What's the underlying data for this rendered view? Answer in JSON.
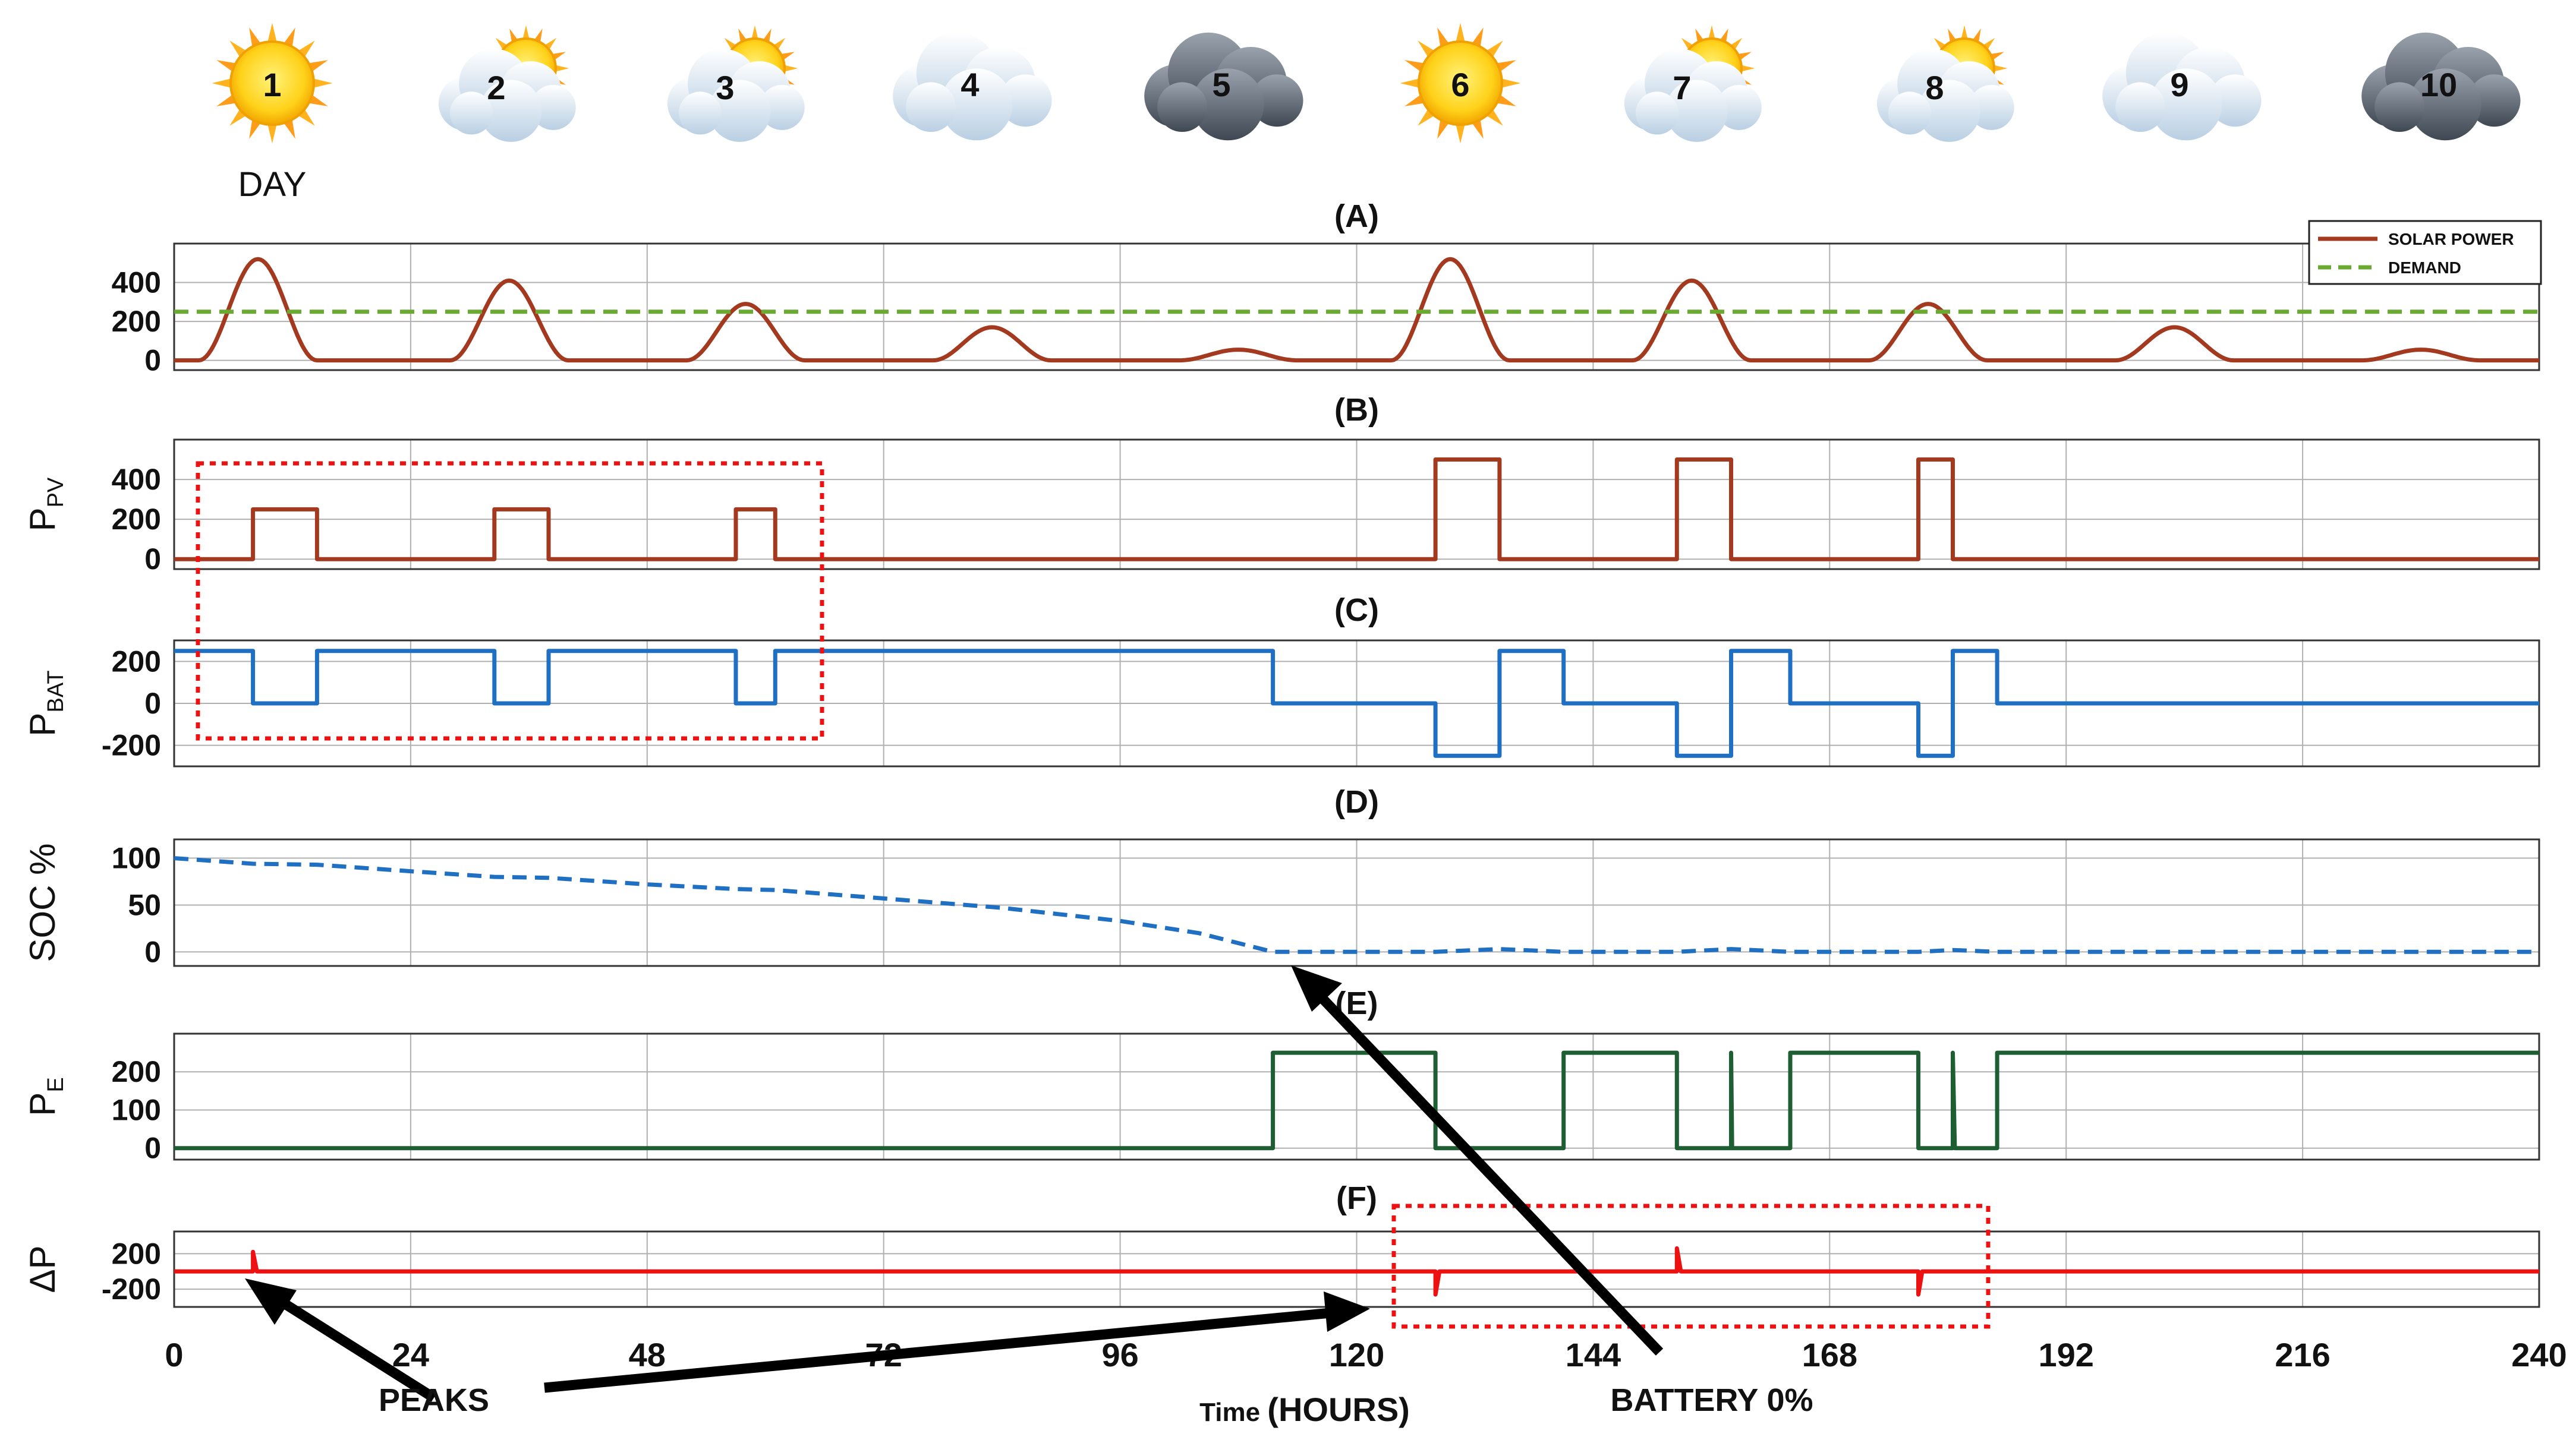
{
  "header": {
    "day_caption": "DAY",
    "days": [
      {
        "label": "1",
        "weather": "sun-icon"
      },
      {
        "label": "2",
        "weather": "sun-behind-cloud-icon"
      },
      {
        "label": "3",
        "weather": "sun-behind-cloud-icon"
      },
      {
        "label": "4",
        "weather": "cloud-icon"
      },
      {
        "label": "5",
        "weather": "dark-cloud-icon"
      },
      {
        "label": "6",
        "weather": "sun-icon"
      },
      {
        "label": "7",
        "weather": "sun-behind-cloud-icon"
      },
      {
        "label": "8",
        "weather": "sun-behind-cloud-icon"
      },
      {
        "label": "9",
        "weather": "cloud-icon"
      },
      {
        "label": "10",
        "weather": "dark-cloud-icon"
      }
    ]
  },
  "annotations": {
    "peaks": "PEAKS",
    "battery": "BATTERY 0%",
    "xlabel_prefix": "Time ",
    "xlabel_suffix": "(HOURS)"
  },
  "colors": {
    "solar": "#a33a1f",
    "demand": "#6aaa32",
    "pv": "#a33a1f",
    "bat": "#1f6fc2",
    "soc": "#1f6fc2",
    "pe": "#1d5e32",
    "dp": "#ee1111",
    "box": "#ee1111",
    "grid": "#b0b0b0"
  },
  "chart_data": [
    {
      "id": "A",
      "type": "line",
      "title": "(A)",
      "ylabel": "",
      "xlim": [
        0,
        240
      ],
      "ylim": [
        -50,
        600
      ],
      "yticks": [
        0,
        200,
        400
      ],
      "legend": "top-right",
      "series": [
        {
          "name": "SOLAR POWER",
          "style": "solid",
          "kind": "bells",
          "base": 0,
          "bells": [
            [
              8.5,
              520
            ],
            [
              34,
              410
            ],
            [
              58,
              290
            ],
            [
              83,
              170
            ],
            [
              108,
              55
            ],
            [
              129.5,
              520
            ],
            [
              154,
              410
            ],
            [
              178,
              290
            ],
            [
              203,
              170
            ],
            [
              228,
              55
            ]
          ],
          "halfwidth": 6
        },
        {
          "name": "DEMAND",
          "style": "dashed",
          "points": [
            [
              0,
              250
            ],
            [
              240,
              250
            ]
          ]
        }
      ]
    },
    {
      "id": "B",
      "type": "line",
      "title": "(B)",
      "ylabel": "P_PV",
      "xlim": [
        0,
        240
      ],
      "ylim": [
        -50,
        600
      ],
      "yticks": [
        0,
        200,
        400
      ],
      "series": [
        {
          "name": "",
          "style": "solid",
          "points": [
            [
              0,
              0
            ],
            [
              8,
              0
            ],
            [
              8,
              250
            ],
            [
              14.5,
              250
            ],
            [
              14.5,
              0
            ],
            [
              32.5,
              0
            ],
            [
              32.5,
              250
            ],
            [
              38,
              250
            ],
            [
              38,
              0
            ],
            [
              57,
              0
            ],
            [
              57,
              250
            ],
            [
              61,
              250
            ],
            [
              61,
              0
            ],
            [
              128,
              0
            ],
            [
              128,
              500
            ],
            [
              134.5,
              500
            ],
            [
              134.5,
              0
            ],
            [
              152.5,
              0
            ],
            [
              152.5,
              500
            ],
            [
              158,
              500
            ],
            [
              158,
              0
            ],
            [
              177,
              0
            ],
            [
              177,
              500
            ],
            [
              180.5,
              500
            ],
            [
              180.5,
              0
            ],
            [
              240,
              0
            ]
          ]
        }
      ]
    },
    {
      "id": "C",
      "type": "line",
      "title": "(C)",
      "ylabel": "P_BAT",
      "xlim": [
        0,
        240
      ],
      "ylim": [
        -300,
        300
      ],
      "yticks": [
        -200,
        0,
        200
      ],
      "series": [
        {
          "name": "",
          "style": "solid",
          "points": [
            [
              0,
              250
            ],
            [
              8,
              250
            ],
            [
              8,
              0
            ],
            [
              14.5,
              0
            ],
            [
              14.5,
              250
            ],
            [
              32.5,
              250
            ],
            [
              32.5,
              0
            ],
            [
              38,
              0
            ],
            [
              38,
              250
            ],
            [
              57,
              250
            ],
            [
              57,
              0
            ],
            [
              61,
              0
            ],
            [
              61,
              250
            ],
            [
              111.5,
              250
            ],
            [
              111.5,
              0
            ],
            [
              128,
              0
            ],
            [
              128,
              -250
            ],
            [
              134.5,
              -250
            ],
            [
              134.5,
              250
            ],
            [
              141,
              250
            ],
            [
              141,
              0
            ],
            [
              152.5,
              0
            ],
            [
              152.5,
              -250
            ],
            [
              158,
              -250
            ],
            [
              158,
              250
            ],
            [
              164,
              250
            ],
            [
              164,
              0
            ],
            [
              177,
              0
            ],
            [
              177,
              -250
            ],
            [
              180.5,
              -250
            ],
            [
              180.5,
              250
            ],
            [
              185,
              250
            ],
            [
              185,
              0
            ],
            [
              240,
              0
            ]
          ]
        }
      ]
    },
    {
      "id": "D",
      "type": "line",
      "title": "(D)",
      "ylabel": "SOC %",
      "xlim": [
        0,
        240
      ],
      "ylim": [
        -15,
        120
      ],
      "yticks": [
        0,
        50,
        100
      ],
      "series": [
        {
          "name": "",
          "style": "dashed",
          "points": [
            [
              0,
              100
            ],
            [
              8,
              94
            ],
            [
              14.5,
              93
            ],
            [
              24,
              86
            ],
            [
              32.5,
              80
            ],
            [
              38,
              79
            ],
            [
              48,
              72
            ],
            [
              57,
              67
            ],
            [
              61,
              66
            ],
            [
              72,
              57
            ],
            [
              84,
              47
            ],
            [
              96,
              33
            ],
            [
              104,
              20
            ],
            [
              111.5,
              0
            ],
            [
              128,
              0
            ],
            [
              134.5,
              3
            ],
            [
              141,
              0
            ],
            [
              152.5,
              0
            ],
            [
              158,
              3
            ],
            [
              164,
              0
            ],
            [
              177,
              0
            ],
            [
              180.5,
              2
            ],
            [
              185,
              0
            ],
            [
              240,
              0
            ]
          ]
        }
      ]
    },
    {
      "id": "E",
      "type": "line",
      "title": "(E)",
      "ylabel": "P_E",
      "xlim": [
        0,
        240
      ],
      "ylim": [
        -30,
        300
      ],
      "yticks": [
        0,
        100,
        200
      ],
      "series": [
        {
          "name": "",
          "style": "solid",
          "points": [
            [
              0,
              0
            ],
            [
              111.5,
              0
            ],
            [
              111.5,
              250
            ],
            [
              128,
              250
            ],
            [
              128,
              0
            ],
            [
              141,
              0
            ],
            [
              141,
              250
            ],
            [
              152.5,
              250
            ],
            [
              152.5,
              0
            ],
            [
              158,
              0
            ],
            [
              158,
              250
            ],
            [
              158.1,
              0
            ],
            [
              164,
              0
            ],
            [
              164,
              250
            ],
            [
              177,
              250
            ],
            [
              177,
              0
            ],
            [
              180.5,
              0
            ],
            [
              180.5,
              250
            ],
            [
              180.7,
              0
            ],
            [
              185,
              0
            ],
            [
              185,
              250
            ],
            [
              240,
              250
            ]
          ]
        }
      ]
    },
    {
      "id": "F",
      "type": "line",
      "title": "(F)",
      "ylabel": "ΔP",
      "xlim": [
        0,
        240
      ],
      "ylim": [
        -400,
        450
      ],
      "yticks": [
        -200,
        200
      ],
      "series": [
        {
          "name": "",
          "style": "solid",
          "points": [
            [
              0,
              0
            ],
            [
              8,
              0
            ],
            [
              8,
              220
            ],
            [
              8.4,
              0
            ],
            [
              128,
              0
            ],
            [
              128,
              -260
            ],
            [
              128.4,
              0
            ],
            [
              152.5,
              0
            ],
            [
              152.5,
              260
            ],
            [
              152.9,
              0
            ],
            [
              177,
              0
            ],
            [
              177,
              -260
            ],
            [
              177.4,
              0
            ],
            [
              240,
              0
            ]
          ]
        }
      ]
    }
  ],
  "xaxis": {
    "ticks": [
      0,
      24,
      48,
      72,
      96,
      120,
      144,
      168,
      192,
      216,
      240
    ]
  }
}
